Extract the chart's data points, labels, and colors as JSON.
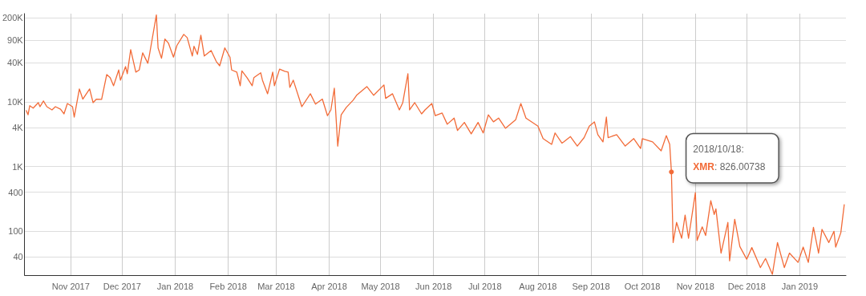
{
  "chart_data": {
    "type": "line",
    "log": "y",
    "grid": true,
    "marker": "none",
    "line_style": "solid",
    "xlim": [
      "2017-10-05",
      "2019-01-28"
    ],
    "xticks": [
      {
        "value": "2017-11-01",
        "label": "Nov 2017"
      },
      {
        "value": "2017-12-01",
        "label": "Dec 2017"
      },
      {
        "value": "2018-01-01",
        "label": "Jan 2018"
      },
      {
        "value": "2018-02-01",
        "label": "Feb 2018"
      },
      {
        "value": "2018-03-01",
        "label": "Mar 2018"
      },
      {
        "value": "2018-04-01",
        "label": "Apr 2018"
      },
      {
        "value": "2018-05-01",
        "label": "May 2018"
      },
      {
        "value": "2018-06-01",
        "label": "Jun 2018"
      },
      {
        "value": "2018-07-01",
        "label": "Jul 2018"
      },
      {
        "value": "2018-08-01",
        "label": "Aug 2018"
      },
      {
        "value": "2018-09-01",
        "label": "Sep 2018"
      },
      {
        "value": "2018-10-01",
        "label": "Oct 2018"
      },
      {
        "value": "2018-11-01",
        "label": "Nov 2018"
      },
      {
        "value": "2018-12-01",
        "label": "Dec 2018"
      },
      {
        "value": "2019-01-01",
        "label": "Jan 2019"
      }
    ],
    "ylim": [
      21,
      230000
    ],
    "yticks": [
      40,
      100,
      400,
      {
        "value": 1000,
        "label": "1K"
      },
      {
        "value": 4000,
        "label": "4K"
      },
      {
        "value": 10000,
        "label": "10K"
      },
      {
        "value": 40000,
        "label": "40K"
      },
      {
        "value": 90000,
        "label": "90K"
      },
      {
        "value": 200000,
        "label": "200K"
      }
    ],
    "annotations": [
      {
        "text": "2018/10/18:",
        "x": "2018-10-18",
        "y": 826.00738
      },
      ": 826.00738"
    ],
    "x": [
      "2017-10-06",
      "2017-10-07",
      "2017-10-08",
      "2017-10-10",
      "2017-10-13",
      "2017-10-14",
      "2017-10-16",
      "2017-10-18",
      "2017-10-21",
      "2017-10-23",
      "2017-10-26",
      "2017-10-28",
      "2017-10-30",
      "2017-11-02",
      "2017-11-03",
      "2017-11-06",
      "2017-11-08",
      "2017-11-12",
      "2017-11-14",
      "2017-11-16",
      "2017-11-19",
      "2017-11-22",
      "2017-11-24",
      "2017-11-26",
      "2017-11-29",
      "2017-11-30",
      "2017-12-03",
      "2017-12-04",
      "2017-12-06",
      "2017-12-09",
      "2017-12-11",
      "2017-12-13",
      "2017-12-16",
      "2017-12-17",
      "2017-12-21",
      "2017-12-22",
      "2017-12-24",
      "2017-12-26",
      "2017-12-28",
      "2017-12-31",
      "2018-01-02",
      "2018-01-06",
      "2018-01-08",
      "2018-01-11",
      "2018-01-12",
      "2018-01-14",
      "2018-01-16",
      "2018-01-18",
      "2018-01-22",
      "2018-01-25",
      "2018-01-27",
      "2018-01-30",
      "2018-02-02",
      "2018-02-03",
      "2018-02-06",
      "2018-02-08",
      "2018-02-09",
      "2018-02-12",
      "2018-02-15",
      "2018-02-16",
      "2018-02-20",
      "2018-02-21",
      "2018-02-24",
      "2018-02-27",
      "2018-02-28",
      "2018-03-03",
      "2018-03-06",
      "2018-03-08",
      "2018-03-09",
      "2018-03-11",
      "2018-03-16",
      "2018-03-21",
      "2018-03-24",
      "2018-03-28",
      "2018-03-31",
      "2018-04-02",
      "2018-04-04",
      "2018-04-06",
      "2018-04-08",
      "2018-04-11",
      "2018-04-15",
      "2018-04-17",
      "2018-04-23",
      "2018-04-27",
      "2018-05-03",
      "2018-05-04",
      "2018-05-08",
      "2018-05-12",
      "2018-05-14",
      "2018-05-17",
      "2018-05-18",
      "2018-05-21",
      "2018-05-25",
      "2018-05-27",
      "2018-05-31",
      "2018-06-02",
      "2018-06-06",
      "2018-06-09",
      "2018-06-13",
      "2018-06-15",
      "2018-06-19",
      "2018-06-23",
      "2018-06-27",
      "2018-06-30",
      "2018-07-03",
      "2018-07-06",
      "2018-07-09",
      "2018-07-13",
      "2018-07-19",
      "2018-07-22",
      "2018-07-25",
      "2018-08-01",
      "2018-08-04",
      "2018-08-09",
      "2018-08-11",
      "2018-08-15",
      "2018-08-16",
      "2018-08-20",
      "2018-08-24",
      "2018-08-28",
      "2018-08-31",
      "2018-09-03",
      "2018-09-05",
      "2018-09-08",
      "2018-09-10",
      "2018-09-11",
      "2018-09-16",
      "2018-09-21",
      "2018-09-26",
      "2018-09-30",
      "2018-10-01",
      "2018-10-07",
      "2018-10-12",
      "2018-10-15",
      "2018-10-17",
      "2018-10-18",
      "2018-10-19",
      "2018-10-21",
      "2018-10-24",
      "2018-10-26",
      "2018-10-28",
      "2018-11-01",
      "2018-11-02",
      "2018-11-05",
      "2018-11-07",
      "2018-11-10",
      "2018-11-12",
      "2018-11-13",
      "2018-11-16",
      "2018-11-20",
      "2018-11-21",
      "2018-11-24",
      "2018-11-27",
      "2018-12-01",
      "2018-12-04",
      "2018-12-09",
      "2018-12-12",
      "2018-12-16",
      "2018-12-19",
      "2018-12-23",
      "2018-12-26",
      "2018-12-31",
      "2019-01-03",
      "2019-01-06",
      "2019-01-09",
      "2019-01-12",
      "2019-01-14",
      "2019-01-18",
      "2019-01-21",
      "2019-01-22",
      "2019-01-25",
      "2019-01-27"
    ],
    "series": [
      {
        "name": "XMR",
        "color": "#f26b38",
        "values": [
          7300,
          6300,
          8700,
          8000,
          9700,
          8400,
          10300,
          8400,
          7500,
          8400,
          7700,
          6500,
          9400,
          8400,
          5800,
          15800,
          11000,
          15800,
          9700,
          11000,
          10900,
          26400,
          23600,
          17700,
          31000,
          21600,
          35000,
          27200,
          64000,
          28800,
          31000,
          57000,
          39400,
          54000,
          220000,
          68000,
          47000,
          93000,
          81000,
          49000,
          74000,
          110000,
          98000,
          51000,
          72000,
          54000,
          107000,
          51000,
          62000,
          42000,
          36000,
          68000,
          49000,
          31000,
          28800,
          17700,
          30000,
          23600,
          17700,
          23600,
          28000,
          21600,
          13300,
          28800,
          17700,
          32000,
          29600,
          28800,
          16700,
          21600,
          8400,
          13300,
          9200,
          11000,
          6100,
          7500,
          16200,
          2070,
          6300,
          8200,
          10600,
          12600,
          17200,
          12600,
          18200,
          11300,
          13300,
          7500,
          9700,
          27200,
          7500,
          9700,
          6500,
          7500,
          9400,
          6100,
          6700,
          4500,
          5600,
          3600,
          4800,
          3200,
          4800,
          3300,
          6300,
          4900,
          5600,
          3900,
          5300,
          9400,
          5600,
          4200,
          2700,
          2200,
          3300,
          2300,
          2400,
          2900,
          2070,
          2800,
          4200,
          4900,
          3100,
          2400,
          5800,
          2800,
          3100,
          2070,
          2700,
          1900,
          2700,
          2400,
          1750,
          3000,
          2200,
          826.00738,
          67,
          137,
          78,
          178,
          78,
          395,
          72,
          117,
          86,
          296,
          182,
          222,
          46,
          137,
          35,
          153,
          58,
          37,
          56,
          27.5,
          38,
          21.6,
          67,
          27.5,
          46,
          33,
          57,
          33,
          115,
          46,
          107,
          67,
          100,
          57,
          95,
          257
        ]
      }
    ]
  }
}
